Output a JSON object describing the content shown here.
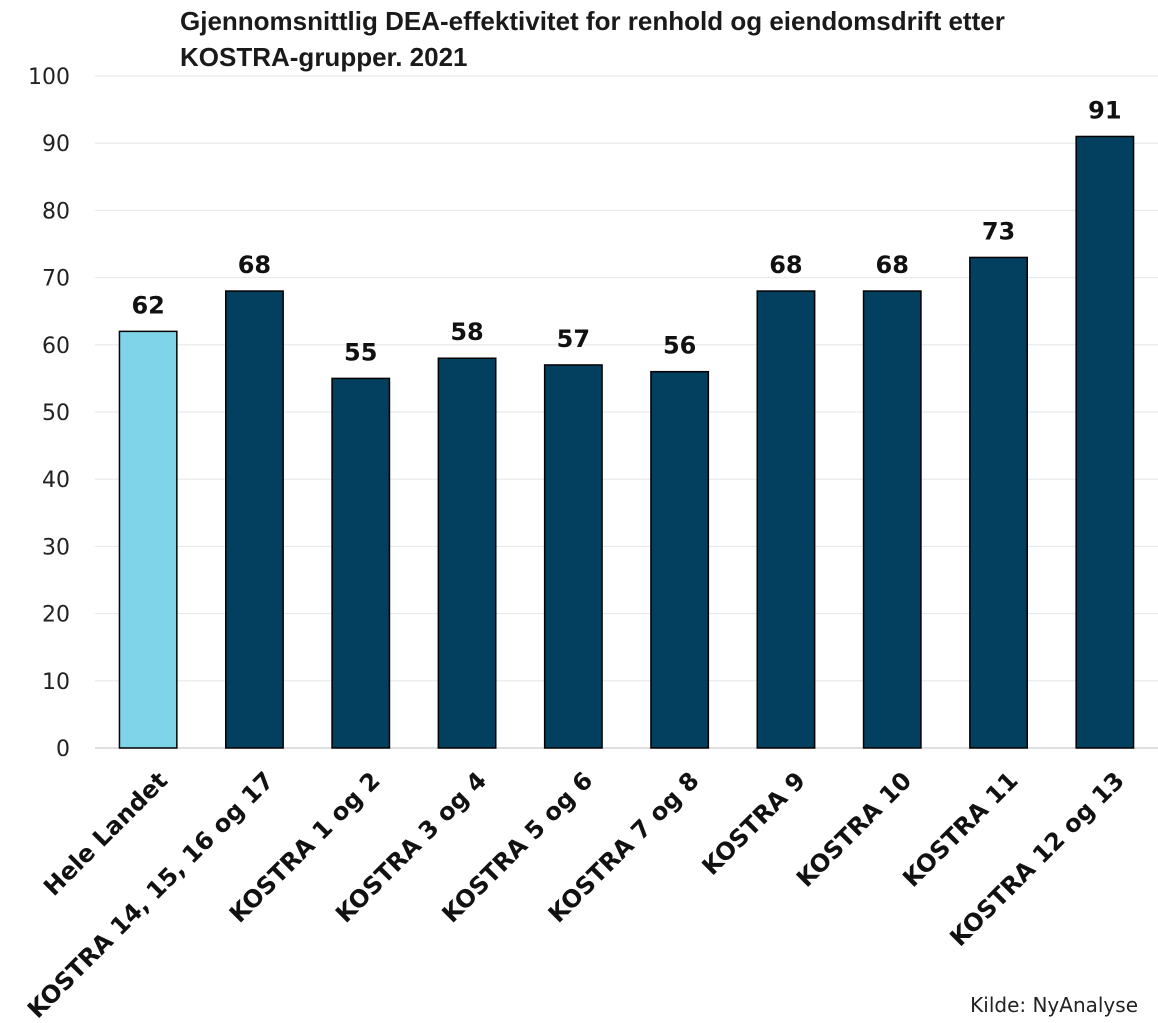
{
  "chart_data": {
    "type": "bar",
    "title_lines": [
      "Gjennomsnittlig DEA-effektivitet for renhold og eiendomsdrift etter",
      "KOSTRA-grupper. 2021"
    ],
    "categories": [
      "Hele Landet",
      "KOSTRA 14, 15, 16 og 17",
      "KOSTRA 1 og 2",
      "KOSTRA 3 og 4",
      "KOSTRA 5 og 6",
      "KOSTRA 7 og 8",
      "KOSTRA 9",
      "KOSTRA 10",
      "KOSTRA 11",
      "KOSTRA 12 og 13"
    ],
    "values": [
      62,
      68,
      55,
      58,
      57,
      56,
      68,
      68,
      73,
      91
    ],
    "ylim": [
      0,
      100
    ],
    "yticks": [
      0,
      10,
      20,
      30,
      40,
      50,
      60,
      70,
      80,
      90,
      100
    ],
    "grid": true,
    "data_labels": true,
    "colors": {
      "highlight": "#7fd4ea",
      "default": "#03405f",
      "highlight_index": 0
    },
    "source": "Kilde: NyAnalyse"
  }
}
